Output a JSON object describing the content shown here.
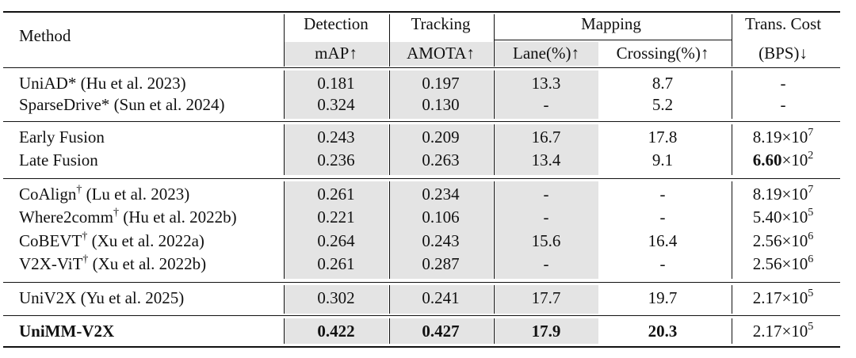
{
  "header": {
    "groups": {
      "method": "Method",
      "detection": "Detection",
      "tracking": "Tracking",
      "mapping": "Mapping",
      "trans_cost": "Trans. Cost"
    },
    "metrics": {
      "map": "mAP↑",
      "amota": "AMOTA↑",
      "lane": "Lane(%)↑",
      "crossing": "Crossing(%)↑",
      "bps": "(BPS)↓"
    }
  },
  "groups": [
    {
      "rows": [
        {
          "method": "UniAD*",
          "dagger": false,
          "cite": "(Hu et al. 2023)",
          "map": "0.181",
          "amota": "0.197",
          "lane": "13.3",
          "crossing": "8.7",
          "cost_mant": "-",
          "cost_exp": ""
        },
        {
          "method": "SparseDrive*",
          "dagger": false,
          "cite": "(Sun et al. 2024)",
          "map": "0.324",
          "amota": "0.130",
          "lane": "-",
          "crossing": "5.2",
          "cost_mant": "-",
          "cost_exp": ""
        }
      ]
    },
    {
      "rows": [
        {
          "method": "Early Fusion",
          "dagger": false,
          "cite": "",
          "map": "0.243",
          "amota": "0.209",
          "lane": "16.7",
          "crossing": "17.8",
          "cost_mant": "8.19",
          "cost_exp": "7"
        },
        {
          "method": "Late Fusion",
          "dagger": false,
          "cite": "",
          "map": "0.236",
          "amota": "0.263",
          "lane": "13.4",
          "crossing": "9.1",
          "cost_mant": "6.60",
          "cost_exp": "2",
          "cost_bold": true
        }
      ]
    },
    {
      "rows": [
        {
          "method": "CoAlign",
          "dagger": true,
          "cite": "(Lu et al. 2023)",
          "map": "0.261",
          "amota": "0.234",
          "lane": "-",
          "crossing": "-",
          "cost_mant": "8.19",
          "cost_exp": "7"
        },
        {
          "method": "Where2comm",
          "dagger": true,
          "cite": "(Hu et al. 2022b)",
          "map": "0.221",
          "amota": "0.106",
          "lane": "-",
          "crossing": "-",
          "cost_mant": "5.40",
          "cost_exp": "5"
        },
        {
          "method": "CoBEVT",
          "dagger": true,
          "cite": "(Xu et al. 2022a)",
          "map": "0.264",
          "amota": "0.243",
          "lane": "15.6",
          "crossing": "16.4",
          "cost_mant": "2.56",
          "cost_exp": "6"
        },
        {
          "method": "V2X-ViT",
          "dagger": true,
          "cite": "(Xu et al. 2022b)",
          "map": "0.261",
          "amota": "0.287",
          "lane": "-",
          "crossing": "-",
          "cost_mant": "2.56",
          "cost_exp": "6"
        }
      ]
    },
    {
      "rows": [
        {
          "method": "UniV2X",
          "dagger": false,
          "cite": "(Yu et al. 2025)",
          "map": "0.302",
          "amota": "0.241",
          "lane": "17.7",
          "crossing": "19.7",
          "cost_mant": "2.17",
          "cost_exp": "5"
        }
      ]
    },
    {
      "rows": [
        {
          "method": "UniMM-V2X",
          "dagger": false,
          "cite": "",
          "map": "0.422",
          "amota": "0.427",
          "lane": "17.9",
          "crossing": "20.3",
          "cost_mant": "2.17",
          "cost_exp": "5",
          "bold": true
        }
      ]
    }
  ]
}
